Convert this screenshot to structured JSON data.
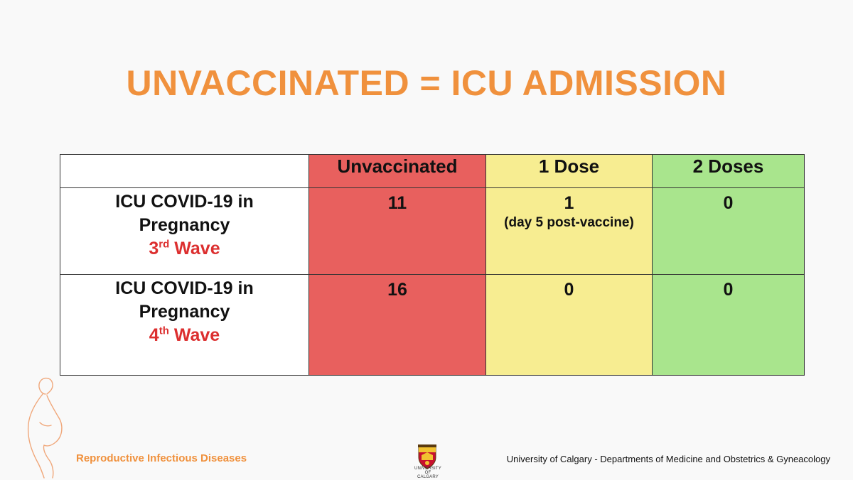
{
  "slide": {
    "title": "UNVACCINATED = ICU ADMISSION",
    "colors": {
      "title": "#f0913d",
      "unvaccinated": "#e8605e",
      "one_dose": "#f7ed91",
      "two_doses": "#a9e58d",
      "wave_text": "#dc2f2f"
    }
  },
  "table": {
    "headers": [
      "",
      "Unvaccinated",
      "1 Dose",
      "2 Doses"
    ],
    "rows": [
      {
        "label_line1": "ICU COVID-19 in",
        "label_line2": "Pregnancy",
        "wave_num": "3",
        "wave_suffix": "rd",
        "wave_word": " Wave",
        "unvaccinated": "11",
        "one_dose": "1",
        "one_dose_note": "(day 5 post-vaccine)",
        "two_doses": "0"
      },
      {
        "label_line1": "ICU COVID-19 in",
        "label_line2": "Pregnancy",
        "wave_num": "4",
        "wave_suffix": "th",
        "wave_word": " Wave",
        "unvaccinated": "16",
        "one_dose": "0",
        "two_doses": "0"
      }
    ]
  },
  "footer": {
    "left": "Reproductive Infectious Diseases",
    "crest_text_line1": "UNIVERSITY OF",
    "crest_text_line2": "CALGARY",
    "right": "University of Calgary - Departments of Medicine and Obstetrics & Gyneacology"
  },
  "icons": {
    "crest": "university-crest-icon",
    "figure": "pregnant-figure-icon"
  }
}
